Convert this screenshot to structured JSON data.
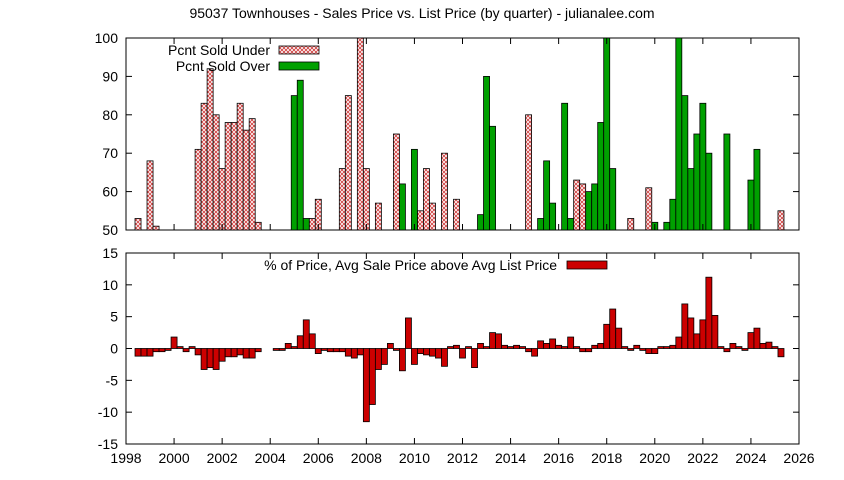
{
  "chart_data": [
    {
      "type": "bar",
      "title": "95037 Townhouses - Sales Price vs. List Price (by quarter) - julianalee.com",
      "xlabel": "",
      "ylabel": "",
      "xlim": [
        1998,
        2026
      ],
      "ylim": [
        50,
        100
      ],
      "yticks": [
        50,
        60,
        70,
        80,
        90,
        100
      ],
      "legend_position": "top-left",
      "grid": false,
      "series": [
        {
          "name": "Pcnt Sold Under",
          "color": "#e8a0a0",
          "pattern": "crosshatch",
          "points": [
            [
              1998.5,
              53
            ],
            [
              1999.0,
              68
            ],
            [
              1999.25,
              51
            ],
            [
              2001.0,
              71
            ],
            [
              2001.25,
              83
            ],
            [
              2001.5,
              92
            ],
            [
              2001.75,
              80
            ],
            [
              2002.0,
              66
            ],
            [
              2002.25,
              78
            ],
            [
              2002.5,
              78
            ],
            [
              2002.75,
              83
            ],
            [
              2003.0,
              76
            ],
            [
              2003.25,
              79
            ],
            [
              2003.5,
              52
            ],
            [
              2005.75,
              53
            ],
            [
              2006.0,
              58
            ],
            [
              2007.0,
              66
            ],
            [
              2007.25,
              85
            ],
            [
              2007.75,
              100
            ],
            [
              2008.0,
              66
            ],
            [
              2008.5,
              57
            ],
            [
              2009.25,
              75
            ],
            [
              2010.25,
              55
            ],
            [
              2010.5,
              66
            ],
            [
              2010.75,
              57
            ],
            [
              2011.25,
              70
            ],
            [
              2011.75,
              58
            ],
            [
              2014.75,
              80
            ],
            [
              2016.75,
              63
            ],
            [
              2017.0,
              62
            ],
            [
              2019.0,
              53
            ],
            [
              2019.75,
              61
            ],
            [
              2025.25,
              55
            ]
          ]
        },
        {
          "name": "Pcnt Sold Over",
          "color": "#00a000",
          "points": [
            [
              2005.0,
              85
            ],
            [
              2005.25,
              89
            ],
            [
              2005.5,
              53
            ],
            [
              2009.5,
              62
            ],
            [
              2010.0,
              71
            ],
            [
              2012.75,
              54
            ],
            [
              2013.0,
              90
            ],
            [
              2013.25,
              77
            ],
            [
              2015.25,
              53
            ],
            [
              2015.5,
              68
            ],
            [
              2015.75,
              57
            ],
            [
              2016.25,
              83
            ],
            [
              2016.5,
              53
            ],
            [
              2017.25,
              60
            ],
            [
              2017.5,
              62
            ],
            [
              2017.75,
              78
            ],
            [
              2018.0,
              100
            ],
            [
              2018.25,
              66
            ],
            [
              2020.0,
              52
            ],
            [
              2020.5,
              52
            ],
            [
              2020.75,
              58
            ],
            [
              2021.0,
              100
            ],
            [
              2021.25,
              85
            ],
            [
              2021.5,
              66
            ],
            [
              2021.75,
              75
            ],
            [
              2022.0,
              83
            ],
            [
              2022.25,
              70
            ],
            [
              2023.0,
              75
            ],
            [
              2024.0,
              63
            ],
            [
              2024.25,
              71
            ]
          ]
        }
      ]
    },
    {
      "type": "bar",
      "title": "",
      "xlabel": "",
      "ylabel": "",
      "xlim": [
        1998,
        2026
      ],
      "ylim": [
        -15,
        15
      ],
      "yticks": [
        -15,
        -10,
        -5,
        0,
        5,
        10,
        15
      ],
      "xticks": [
        1998,
        2000,
        2002,
        2004,
        2006,
        2008,
        2010,
        2012,
        2014,
        2016,
        2018,
        2020,
        2022,
        2024,
        2026
      ],
      "legend_position": "top-center",
      "grid": false,
      "series": [
        {
          "name": "% of Price, Avg Sale Price above Avg List Price",
          "color": "#cc0000",
          "points": [
            [
              1998.5,
              -1.2
            ],
            [
              1998.75,
              -1.2
            ],
            [
              1999.0,
              -1.2
            ],
            [
              1999.25,
              -0.5
            ],
            [
              1999.5,
              -0.5
            ],
            [
              1999.75,
              -0.3
            ],
            [
              2000.0,
              1.8
            ],
            [
              2000.25,
              0.3
            ],
            [
              2000.5,
              -0.5
            ],
            [
              2000.75,
              0.3
            ],
            [
              2001.0,
              -1.0
            ],
            [
              2001.25,
              -3.3
            ],
            [
              2001.5,
              -3.0
            ],
            [
              2001.75,
              -3.3
            ],
            [
              2002.0,
              -2.0
            ],
            [
              2002.25,
              -1.3
            ],
            [
              2002.5,
              -1.3
            ],
            [
              2002.75,
              -1.0
            ],
            [
              2003.0,
              -1.5
            ],
            [
              2003.25,
              -1.5
            ],
            [
              2003.5,
              -0.5
            ],
            [
              2004.25,
              -0.3
            ],
            [
              2004.5,
              -0.3
            ],
            [
              2004.75,
              0.8
            ],
            [
              2005.0,
              0.3
            ],
            [
              2005.25,
              2.0
            ],
            [
              2005.5,
              4.5
            ],
            [
              2005.75,
              2.3
            ],
            [
              2006.0,
              -0.8
            ],
            [
              2006.25,
              -0.3
            ],
            [
              2006.5,
              -0.5
            ],
            [
              2006.75,
              -0.5
            ],
            [
              2007.0,
              -0.5
            ],
            [
              2007.25,
              -1.2
            ],
            [
              2007.5,
              -1.5
            ],
            [
              2007.75,
              -1.0
            ],
            [
              2008.0,
              -11.5
            ],
            [
              2008.25,
              -8.8
            ],
            [
              2008.5,
              -3.3
            ],
            [
              2008.75,
              -2.5
            ],
            [
              2009.0,
              0.8
            ],
            [
              2009.25,
              -0.3
            ],
            [
              2009.5,
              -3.5
            ],
            [
              2009.75,
              4.8
            ],
            [
              2010.0,
              -2.5
            ],
            [
              2010.25,
              -0.8
            ],
            [
              2010.5,
              -1.0
            ],
            [
              2010.75,
              -1.2
            ],
            [
              2011.0,
              -1.5
            ],
            [
              2011.25,
              -2.8
            ],
            [
              2011.5,
              0.3
            ],
            [
              2011.75,
              0.5
            ],
            [
              2012.0,
              -1.5
            ],
            [
              2012.25,
              0.3
            ],
            [
              2012.5,
              -3.0
            ],
            [
              2012.75,
              0.8
            ],
            [
              2013.0,
              0.3
            ],
            [
              2013.25,
              2.5
            ],
            [
              2013.5,
              2.3
            ],
            [
              2013.75,
              0.5
            ],
            [
              2014.0,
              0.3
            ],
            [
              2014.25,
              0.5
            ],
            [
              2014.5,
              0.3
            ],
            [
              2014.75,
              -0.5
            ],
            [
              2015.0,
              -1.2
            ],
            [
              2015.25,
              1.2
            ],
            [
              2015.5,
              0.8
            ],
            [
              2015.75,
              1.5
            ],
            [
              2016.0,
              0.5
            ],
            [
              2016.25,
              0.3
            ],
            [
              2016.5,
              1.8
            ],
            [
              2016.75,
              0.3
            ],
            [
              2017.0,
              -0.5
            ],
            [
              2017.25,
              -0.5
            ],
            [
              2017.5,
              0.5
            ],
            [
              2017.75,
              0.8
            ],
            [
              2018.0,
              3.8
            ],
            [
              2018.25,
              6.2
            ],
            [
              2018.5,
              3.2
            ],
            [
              2018.75,
              0.3
            ],
            [
              2019.0,
              -0.3
            ],
            [
              2019.25,
              0.5
            ],
            [
              2019.5,
              -0.3
            ],
            [
              2019.75,
              -0.8
            ],
            [
              2020.0,
              -0.8
            ],
            [
              2020.25,
              0.3
            ],
            [
              2020.5,
              0.3
            ],
            [
              2020.75,
              0.5
            ],
            [
              2021.0,
              1.8
            ],
            [
              2021.25,
              7.0
            ],
            [
              2021.5,
              4.8
            ],
            [
              2021.75,
              2.3
            ],
            [
              2022.0,
              4.5
            ],
            [
              2022.25,
              11.2
            ],
            [
              2022.5,
              5.2
            ],
            [
              2022.75,
              0.3
            ],
            [
              2023.0,
              -0.5
            ],
            [
              2023.25,
              0.8
            ],
            [
              2023.5,
              0.3
            ],
            [
              2023.75,
              -0.3
            ],
            [
              2024.0,
              2.5
            ],
            [
              2024.25,
              3.2
            ],
            [
              2024.5,
              0.8
            ],
            [
              2024.75,
              1.0
            ],
            [
              2025.0,
              0.3
            ],
            [
              2025.25,
              -1.3
            ]
          ]
        }
      ]
    }
  ]
}
